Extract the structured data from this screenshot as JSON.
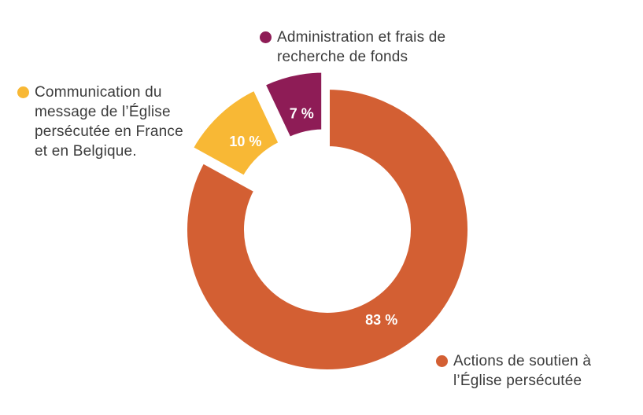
{
  "chart_data": {
    "type": "pie",
    "donut": true,
    "slices": [
      {
        "label": "Actions de soutien à l’Église persécutée",
        "value": 83,
        "display": "83 %",
        "color": "#D35F33"
      },
      {
        "label": "Communication du message de l’Église persécutée en France et en Belgique.",
        "value": 10,
        "display": "10 %",
        "color": "#F8B835"
      },
      {
        "label": "Administration et frais de recherche de fonds",
        "value": 7,
        "display": "7 %",
        "color": "#8E1C56"
      }
    ],
    "legend_placement": "around the chart"
  }
}
